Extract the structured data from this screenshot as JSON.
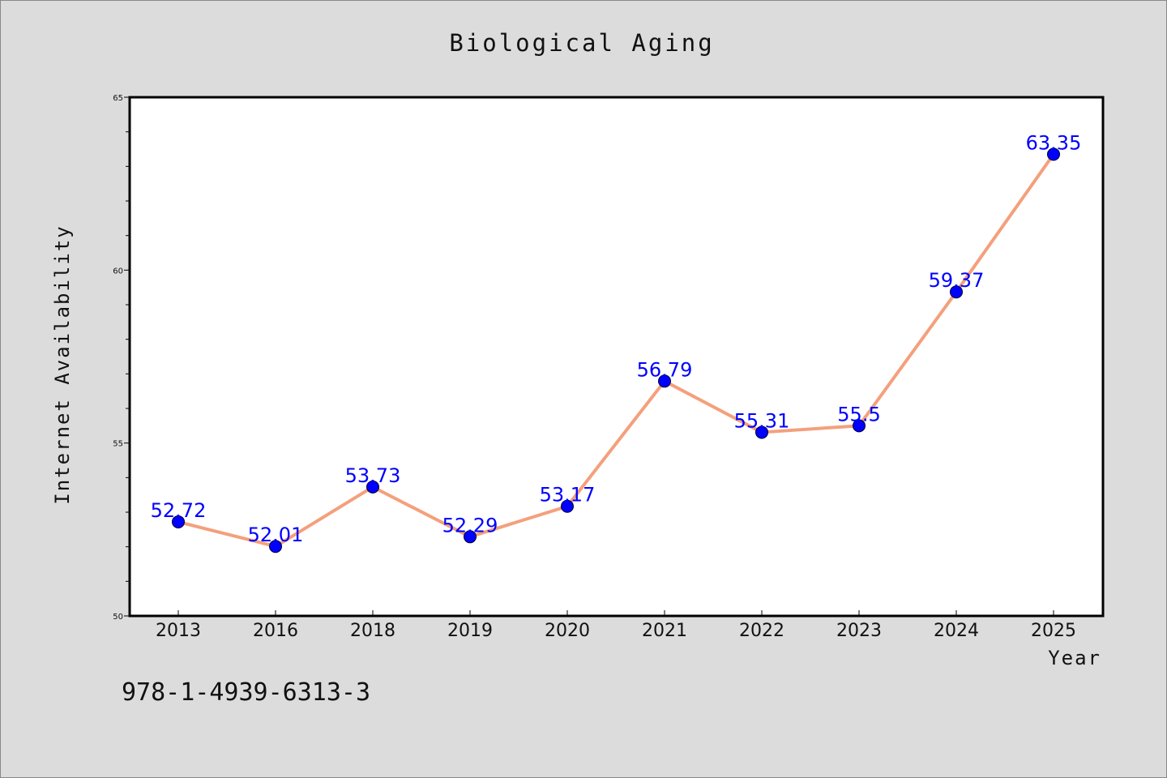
{
  "chart_data": {
    "type": "line",
    "title": "Biological Aging",
    "xlabel": "Year",
    "ylabel": "Internet Availability",
    "categories": [
      "2013",
      "2016",
      "2018",
      "2019",
      "2020",
      "2021",
      "2022",
      "2023",
      "2024",
      "2025"
    ],
    "values": [
      52.72,
      52.01,
      53.73,
      52.29,
      53.17,
      56.79,
      55.31,
      55.5,
      59.37,
      63.35
    ],
    "data_labels": [
      "52.72",
      "52.01",
      "53.73",
      "52.29",
      "53.17",
      "56.79",
      "55.31",
      "55.5",
      "59.37",
      "63.35"
    ],
    "ylim": [
      50,
      65
    ],
    "yticks": [
      50,
      55,
      60,
      65
    ],
    "ytick_labels": [
      "50",
      "55",
      "60",
      "65"
    ],
    "y_minor_step": 1,
    "grid": false,
    "legend": "none",
    "line_color": "#f4a07c",
    "marker_color": "#0000ff",
    "label_color": "#0000ff",
    "background_color": "#dcdcdc",
    "plot_background_color": "#ffffff"
  },
  "footnote": "978-1-4939-6313-3"
}
